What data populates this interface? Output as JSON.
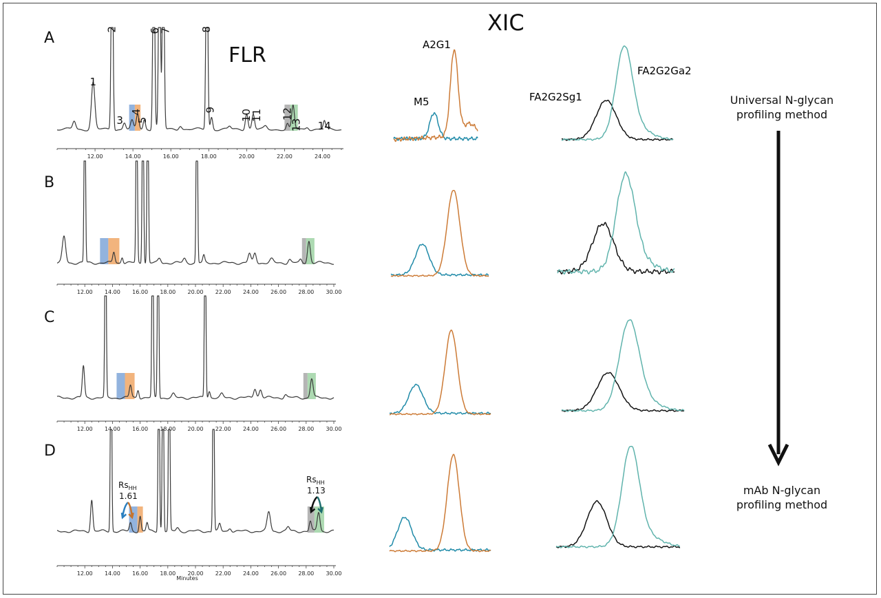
{
  "figure": {
    "flr_title": "FLR",
    "xic_title": "XIC",
    "panel_labels": [
      "A",
      "B",
      "C",
      "D"
    ],
    "x_axis_label": "Minutes",
    "method_top": [
      "Universal N-glycan",
      "profiling method"
    ],
    "method_bottom": [
      "mAb N-glycan",
      "profiling method"
    ],
    "glycans": {
      "a2g1": "A2G1",
      "m5": "M5",
      "fa2g2sg1": "FA2G2Sg1",
      "fa2g2ga2": "FA2G2Ga2"
    },
    "rs_label_main": "Rs",
    "rs_label_sub": "HH",
    "rs_values": [
      "1.61",
      "1.13"
    ],
    "colors": {
      "m5": "#1f8aa8",
      "a2g1": "#cc7a35",
      "fa2g2ga2": "#5fb3ac",
      "fa2g2sg1": "#111111",
      "box_blue": "#7fa6d8",
      "box_orange": "#f0a766",
      "box_gray": "#a8a8a8",
      "box_green": "#9fd3a5"
    }
  },
  "chart_data": [
    {
      "type": "line",
      "panel": "A",
      "xlabel": "",
      "xlim": [
        10.0,
        25.0
      ],
      "x_ticks": [
        "12.00",
        "14.00",
        "16.00",
        "18.00",
        "20.00",
        "22.00",
        "24.00"
      ],
      "peak_labels": [
        {
          "label": "1",
          "x": 11.9
        },
        {
          "label": "2",
          "x": 12.9
        },
        {
          "label": "3",
          "x": 13.6
        },
        {
          "label": "4",
          "x": 14.2
        },
        {
          "label": "5",
          "x": 14.6
        },
        {
          "label": "6",
          "x": 15.1
        },
        {
          "label": "7",
          "x": 15.6
        },
        {
          "label": "8",
          "x": 17.9
        },
        {
          "label": "9",
          "x": 18.1
        },
        {
          "label": "10",
          "x": 20.0
        },
        {
          "label": "11",
          "x": 20.4
        },
        {
          "label": "12",
          "x": 22.1
        },
        {
          "label": "13",
          "x": 22.5
        },
        {
          "label": "14",
          "x": 24.1
        }
      ]
    },
    {
      "type": "line",
      "panel": "B",
      "xlabel": "",
      "xlim": [
        10.0,
        30.0
      ],
      "x_ticks": [
        "12.00",
        "14.00",
        "16.00",
        "18.00",
        "20.00",
        "22.00",
        "24.00",
        "26.00",
        "28.00",
        "30.00"
      ]
    },
    {
      "type": "line",
      "panel": "C",
      "xlabel": "",
      "xlim": [
        10.0,
        30.0
      ],
      "x_ticks": [
        "12.00",
        "14.00",
        "16.00",
        "18.00",
        "20.00",
        "22.00",
        "24.00",
        "26.00",
        "28.00",
        "30.00"
      ]
    },
    {
      "type": "line",
      "panel": "D",
      "xlabel": "Minutes",
      "xlim": [
        10.0,
        30.0
      ],
      "x_ticks": [
        "12.00",
        "14.00",
        "16.00",
        "18.00",
        "20.00",
        "22.00",
        "24.00",
        "26.00",
        "28.00",
        "30.00"
      ],
      "annotations": [
        {
          "text": "Rs HH 1.61"
        },
        {
          "text": "Rs HH 1.13"
        }
      ]
    },
    {
      "type": "line",
      "panel": "XIC",
      "series": [
        {
          "name": "A2G1"
        },
        {
          "name": "M5"
        },
        {
          "name": "FA2G2Sg1"
        },
        {
          "name": "FA2G2Ga2"
        }
      ]
    }
  ]
}
